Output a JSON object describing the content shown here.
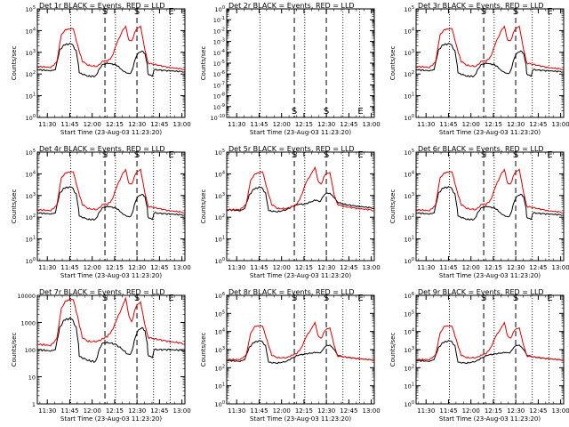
{
  "colors": {
    "events": "#000000",
    "lld": "#dd0000",
    "axes": "#000000"
  },
  "common": {
    "x_ticks": [
      "11:30",
      "11:45",
      "12:00",
      "12:15",
      "12:30",
      "12:45",
      "13:00"
    ],
    "xlabel": "Start Time (23-Aug-03 11:23:20)",
    "ylabel": "Counts/sec",
    "markers": [
      "S",
      "S",
      "E"
    ]
  },
  "chart_data": [
    {
      "type": "line",
      "title": "Det 1r BLACK = Events, RED = LLD",
      "xlabel": "Start Time (23-Aug-03 11:23:20)",
      "ylabel": "Counts/sec",
      "scale": "log",
      "ylim": [
        1,
        100000
      ],
      "y_ticks": [
        "10^0",
        "10^1",
        "10^2",
        "10^3",
        "10^4",
        "10^5"
      ],
      "x_ticks": [
        "11:30",
        "11:45",
        "12:00",
        "12:15",
        "12:30",
        "12:45",
        "13:00"
      ],
      "xlim": [
        "11:23:20",
        "13:02:00"
      ],
      "series": [
        {
          "name": "Events",
          "color": "#000000",
          "profile": "std"
        },
        {
          "name": "LLD",
          "color": "#dd0000",
          "profile": "std"
        }
      ]
    },
    {
      "type": "line",
      "title": "Det 2r BLACK = Events, RED = LLD",
      "xlabel": "Start Time (23-Aug-03 11:23:20)",
      "ylabel": "Counts/sec",
      "scale": "log",
      "ylim": [
        1e-10,
        1
      ],
      "y_ticks": [
        "10^-10",
        "10^-9",
        "10^-8",
        "10^-7",
        "10^-6",
        "10^-5",
        "10^-4",
        "10^-3",
        "10^-2",
        "10^-1",
        "10^0"
      ],
      "x_ticks": [
        "11:30",
        "11:45",
        "12:00",
        "12:15",
        "12:30",
        "12:45",
        "13:00"
      ],
      "xlim": [
        "11:23:20",
        "13:02:00"
      ],
      "series": []
    },
    {
      "type": "line",
      "title": "Det 3r BLACK = Events, RED = LLD",
      "xlabel": "Start Time (23-Aug-03 11:23:20)",
      "ylabel": "Counts/sec",
      "scale": "log",
      "ylim": [
        1,
        100000
      ],
      "y_ticks": [
        "10^0",
        "10^1",
        "10^2",
        "10^3",
        "10^4",
        "10^5"
      ],
      "x_ticks": [
        "11:30",
        "11:45",
        "12:00",
        "12:15",
        "12:30",
        "12:45",
        "13:00"
      ],
      "xlim": [
        "11:23:20",
        "13:02:00"
      ],
      "series": [
        {
          "name": "Events",
          "color": "#000000",
          "profile": "std"
        },
        {
          "name": "LLD",
          "color": "#dd0000",
          "profile": "std"
        }
      ]
    },
    {
      "type": "line",
      "title": "Det 4r BLACK = Events, RED = LLD",
      "xlabel": "Start Time (23-Aug-03 11:23:20)",
      "ylabel": "Counts/sec",
      "scale": "log",
      "ylim": [
        1,
        100000
      ],
      "y_ticks": [
        "10^0",
        "10^1",
        "10^2",
        "10^3",
        "10^4",
        "10^5"
      ],
      "x_ticks": [
        "11:30",
        "11:45",
        "12:00",
        "12:15",
        "12:30",
        "12:45",
        "13:00"
      ],
      "xlim": [
        "11:23:20",
        "13:02:00"
      ],
      "series": [
        {
          "name": "Events",
          "color": "#000000",
          "profile": "std"
        },
        {
          "name": "LLD",
          "color": "#dd0000",
          "profile": "std"
        }
      ]
    },
    {
      "type": "line",
      "title": "Det 5r BLACK = Events, RED = LLD",
      "xlabel": "Start Time (23-Aug-03 11:23:20)",
      "ylabel": "Counts/sec",
      "scale": "log",
      "ylim": [
        1,
        100000
      ],
      "y_ticks": [
        "10^0",
        "10^1",
        "10^2",
        "10^3",
        "10^4",
        "10^5"
      ],
      "x_ticks": [
        "11:30",
        "11:45",
        "12:00",
        "12:15",
        "12:30",
        "12:45",
        "13:00"
      ],
      "xlim": [
        "11:23:20",
        "13:02:00"
      ],
      "series": [
        {
          "name": "Events",
          "color": "#000000",
          "profile": "det5"
        },
        {
          "name": "LLD",
          "color": "#dd0000",
          "profile": "det5"
        }
      ]
    },
    {
      "type": "line",
      "title": "Det 6r BLACK = Events, RED = LLD",
      "xlabel": "Start Time (23-Aug-03 11:23:20)",
      "ylabel": "Counts/sec",
      "scale": "log",
      "ylim": [
        1,
        100000
      ],
      "y_ticks": [
        "10^0",
        "10^1",
        "10^2",
        "10^3",
        "10^4",
        "10^5"
      ],
      "x_ticks": [
        "11:30",
        "11:45",
        "12:00",
        "12:15",
        "12:30",
        "12:45",
        "13:00"
      ],
      "xlim": [
        "11:23:20",
        "13:02:00"
      ],
      "series": [
        {
          "name": "Events",
          "color": "#000000",
          "profile": "std"
        },
        {
          "name": "LLD",
          "color": "#dd0000",
          "profile": "std"
        }
      ]
    },
    {
      "type": "line",
      "title": "Det 7r BLACK = Events, RED = LLD",
      "xlabel": "Start Time (23-Aug-03 11:23:20)",
      "ylabel": "Counts/sec",
      "scale": "log",
      "ylim": [
        1,
        10000
      ],
      "y_ticks": [
        "1",
        "10",
        "100",
        "1000",
        "10000"
      ],
      "x_ticks": [
        "11:30",
        "11:45",
        "12:00",
        "12:15",
        "12:30",
        "12:45",
        "13:00"
      ],
      "xlim": [
        "11:23:20",
        "13:02:00"
      ],
      "series": [
        {
          "name": "Events",
          "color": "#000000",
          "profile": "det7"
        },
        {
          "name": "LLD",
          "color": "#dd0000",
          "profile": "det7"
        }
      ]
    },
    {
      "type": "line",
      "title": "Det 8r BLACK = Events, RED = LLD",
      "xlabel": "Start Time (23-Aug-03 11:23:20)",
      "ylabel": "Counts/sec",
      "scale": "log",
      "ylim": [
        1,
        1000000
      ],
      "y_ticks": [
        "10^0",
        "10^1",
        "10^2",
        "10^3",
        "10^4",
        "10^5",
        "10^6"
      ],
      "x_ticks": [
        "11:30",
        "11:45",
        "12:00",
        "12:15",
        "12:30",
        "12:45",
        "13:00"
      ],
      "xlim": [
        "11:23:20",
        "13:02:00"
      ],
      "series": [
        {
          "name": "Events",
          "color": "#000000",
          "profile": "det8"
        },
        {
          "name": "LLD",
          "color": "#dd0000",
          "profile": "det8"
        }
      ]
    },
    {
      "type": "line",
      "title": "Det 9r BLACK = Events, RED = LLD",
      "xlabel": "Start Time (23-Aug-03 11:23:20)",
      "ylabel": "Counts/sec",
      "scale": "log",
      "ylim": [
        1,
        1000000
      ],
      "y_ticks": [
        "10^0",
        "10^1",
        "10^2",
        "10^3",
        "10^4",
        "10^5",
        "10^6"
      ],
      "x_ticks": [
        "11:30",
        "11:45",
        "12:00",
        "12:15",
        "12:30",
        "12:45",
        "13:00"
      ],
      "xlim": [
        "11:23:20",
        "13:02:00"
      ],
      "series": [
        {
          "name": "Events",
          "color": "#000000",
          "profile": "det8"
        },
        {
          "name": "LLD",
          "color": "#dd0000",
          "profile": "det8"
        }
      ]
    }
  ]
}
